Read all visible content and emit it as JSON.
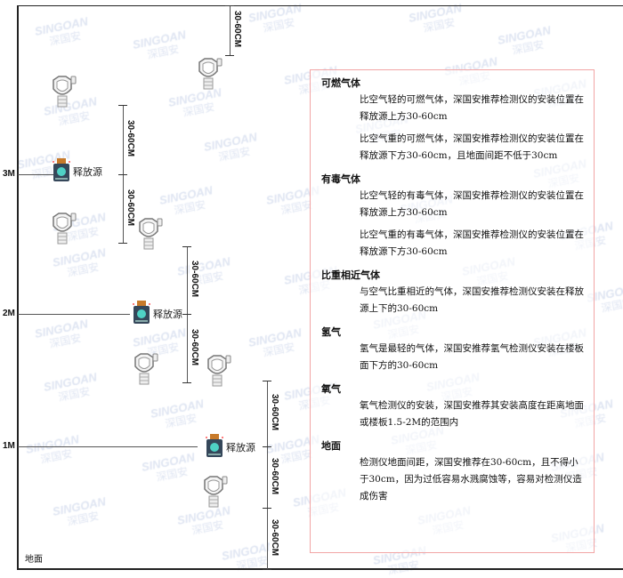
{
  "watermark": {
    "brand": "SINGOAN",
    "cn": "深国安"
  },
  "levels": [
    "3M",
    "2M",
    "1M"
  ],
  "ground_label": "地面",
  "source_label": "释放源",
  "dimension_label": "30-60CM",
  "colors": {
    "frame": "#222222",
    "info_border": "#f2a5a5",
    "watermark": "#c9d3ea"
  },
  "info": {
    "sections": [
      {
        "title": "可燃气体",
        "paras": [
          "比空气轻的可燃气体，深国安推荐检测仪的安装位置在释放源上方30-60cm",
          "比空气重的可燃气体，深国安推荐检测仪的安装位置在释放源下方30-60cm，且地面间距不低于30cm"
        ]
      },
      {
        "title": "有毒气体",
        "paras": [
          "比空气轻的有毒气体，深国安推荐检测仪的安装位置在释放源上方30-60cm",
          "比空气重的有毒气体，深国安推荐检测仪的安装位置在释放源下方30-60cm"
        ]
      },
      {
        "title": "比重相近气体",
        "paras": [
          "与空气比重相近的气体，深国安推荐检测仪安装在释放源上下的30-60cm"
        ]
      },
      {
        "title": "氢气",
        "paras": [
          "氢气是最轻的气体，深国安推荐氢气检测仪安装在楼板面下方的30-60cm"
        ]
      },
      {
        "title": "氧气",
        "paras": [
          "氧气检测仪的安装，深国安推荐其安装高度在距离地面或楼板1.5-2M的范围内"
        ]
      },
      {
        "title": "地面",
        "paras": [
          "检测仪地面间距，深国安推荐在30-60cm，且不得小于30cm，因为过低容易水溅腐蚀等，容易对检测仪造成伤害"
        ]
      }
    ]
  }
}
